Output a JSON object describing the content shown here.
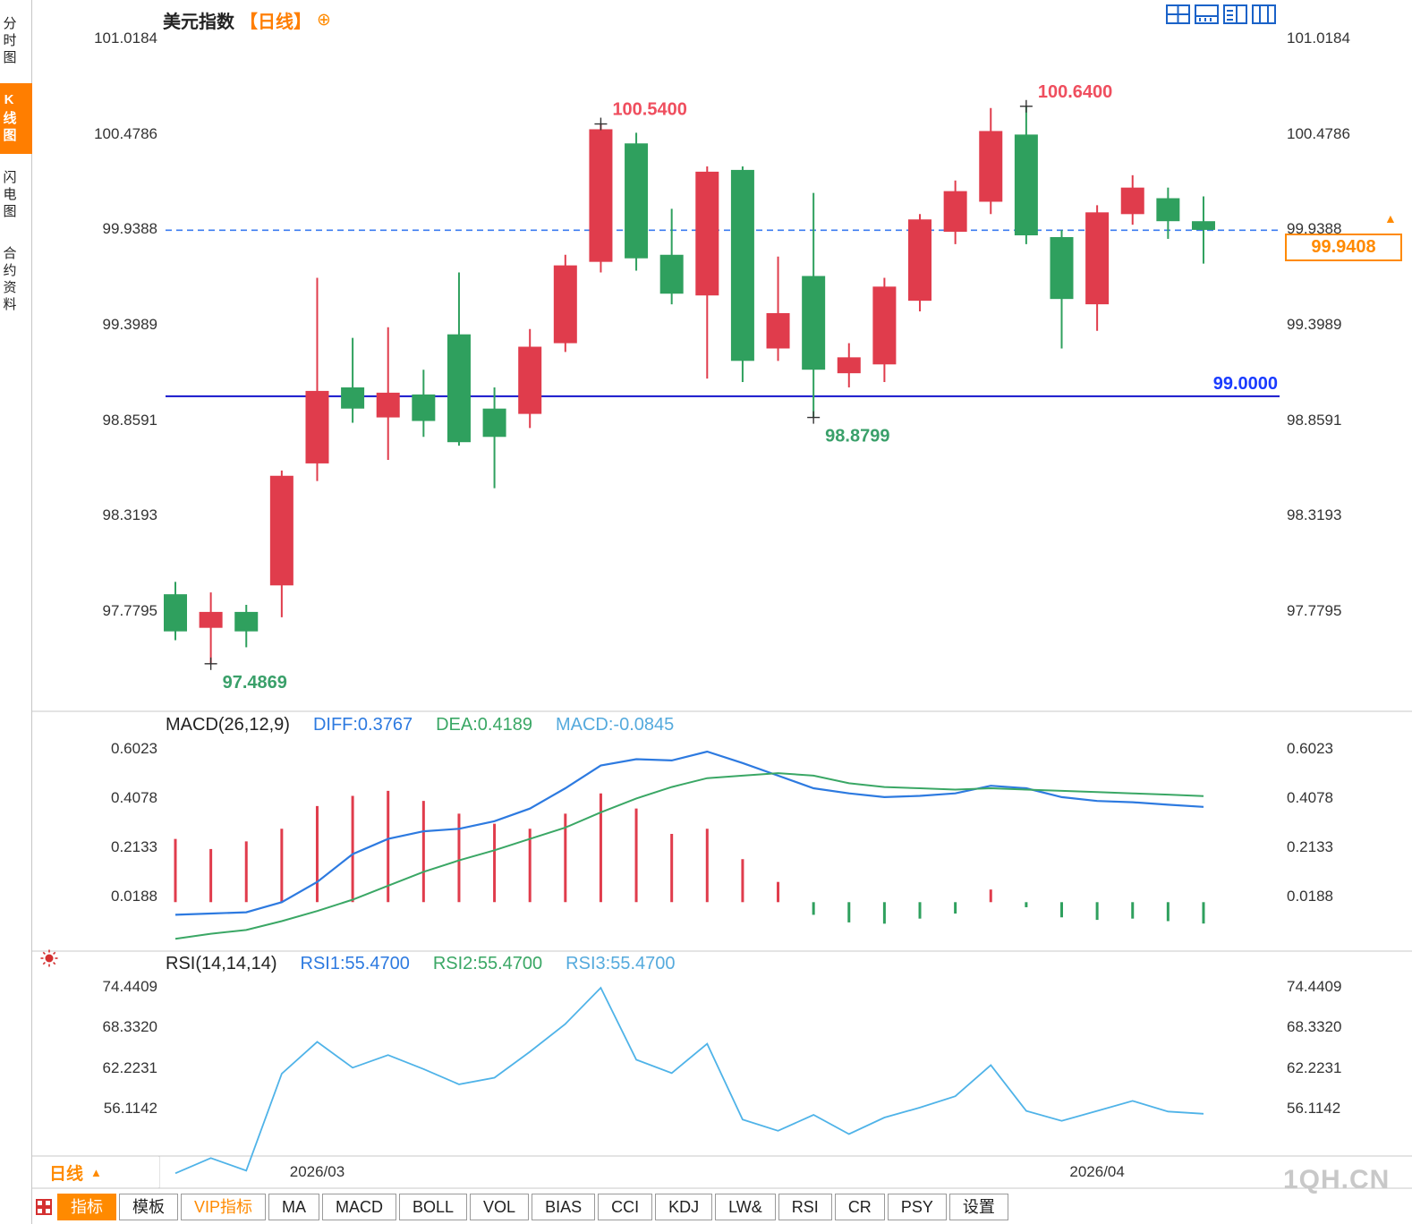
{
  "colors": {
    "up": "#e03c4c",
    "down": "#2fa05e",
    "diff_line": "#2d7ae0",
    "dea_line": "#3aa765",
    "rsi_line": "#4fb3e8",
    "accent_orange": "#ff7e00",
    "solid_line": "#1414cc",
    "solid_label": "#1a3bff",
    "dashed_line": "#3a7bf0",
    "label_high": "#ef4e5e",
    "label_low": "#3aa06a",
    "axis_text": "#333333",
    "watermark": "#c8c8c8",
    "icon_blue": "#1a62c8"
  },
  "sidebar": {
    "items": [
      {
        "label": "分时图",
        "active": false
      },
      {
        "label": "K线图",
        "active": true
      },
      {
        "label": "闪电图",
        "active": false
      },
      {
        "label": "合约资料",
        "active": false
      }
    ]
  },
  "header": {
    "title": "美元指数",
    "period": "【日线】",
    "plus_icon": "⊕"
  },
  "kline": {
    "axis_labels": [
      "101.0184",
      "100.4786",
      "99.9388",
      "99.3989",
      "98.8591",
      "98.3193",
      "97.7795"
    ],
    "axis_values": [
      101.0184,
      100.4786,
      99.9388,
      99.3989,
      98.8591,
      98.3193,
      97.7795
    ],
    "hline_solid": {
      "value": 99.0,
      "label": "99.0000"
    },
    "hline_dashed": {
      "value": 99.9388
    },
    "current_price": "99.9408",
    "price_arrow": "▲",
    "annotations": [
      {
        "text": "100.5400",
        "type": "high",
        "candle": 12
      },
      {
        "text": "100.6400",
        "type": "high",
        "candle": 24
      },
      {
        "text": "98.8799",
        "type": "low",
        "candle": 18
      },
      {
        "text": "97.4869",
        "type": "low",
        "candle": 1
      }
    ]
  },
  "chart_data": [
    {
      "type": "candlestick",
      "title": "美元指数 日线",
      "x_labels": [
        {
          "label": "2026/03",
          "index": 4
        },
        {
          "label": "2026/04",
          "index": 26
        }
      ],
      "ohlc": [
        [
          97.88,
          97.95,
          97.62,
          97.67
        ],
        [
          97.69,
          97.89,
          97.4869,
          97.78
        ],
        [
          97.78,
          97.82,
          97.58,
          97.67
        ],
        [
          97.93,
          98.58,
          97.75,
          98.55
        ],
        [
          98.62,
          99.67,
          98.52,
          99.03
        ],
        [
          99.05,
          99.33,
          98.85,
          98.93
        ],
        [
          98.88,
          99.39,
          98.64,
          99.02
        ],
        [
          99.01,
          99.15,
          98.77,
          98.86
        ],
        [
          99.35,
          99.7,
          98.72,
          98.74
        ],
        [
          98.93,
          99.05,
          98.48,
          98.77
        ],
        [
          98.9,
          99.38,
          98.82,
          99.28
        ],
        [
          99.3,
          99.8,
          99.25,
          99.74
        ],
        [
          99.76,
          100.54,
          99.7,
          100.51
        ],
        [
          100.43,
          100.49,
          99.71,
          99.78
        ],
        [
          99.8,
          100.06,
          99.52,
          99.58
        ],
        [
          99.57,
          100.3,
          99.1,
          100.27
        ],
        [
          100.28,
          100.3,
          99.08,
          99.2
        ],
        [
          99.27,
          99.79,
          99.2,
          99.47
        ],
        [
          99.68,
          100.15,
          98.8799,
          99.15
        ],
        [
          99.13,
          99.3,
          99.05,
          99.22
        ],
        [
          99.18,
          99.67,
          99.08,
          99.62
        ],
        [
          99.54,
          100.03,
          99.48,
          100.0
        ],
        [
          99.93,
          100.22,
          99.86,
          100.16
        ],
        [
          100.1,
          100.63,
          100.03,
          100.5
        ],
        [
          100.48,
          100.64,
          99.86,
          99.91
        ],
        [
          99.9,
          99.94,
          99.27,
          99.55
        ],
        [
          99.52,
          100.08,
          99.37,
          100.04
        ],
        [
          100.03,
          100.25,
          99.97,
          100.18
        ],
        [
          100.12,
          100.18,
          99.89,
          99.99
        ],
        [
          99.99,
          100.13,
          99.75,
          99.9408
        ]
      ]
    },
    {
      "type": "bar",
      "title": "MACD(26,12,9)",
      "legend": {
        "diff": "DIFF:0.3767",
        "dea": "DEA:0.4189",
        "macd": "MACD:-0.0845"
      },
      "axis_labels": [
        "0.6023",
        "0.4078",
        "0.2133",
        "0.0188"
      ],
      "axis_values": [
        0.6023,
        0.4078,
        0.2133,
        0.0188
      ],
      "hist": [
        0.25,
        0.21,
        0.24,
        0.29,
        0.38,
        0.42,
        0.44,
        0.4,
        0.35,
        0.31,
        0.29,
        0.35,
        0.43,
        0.37,
        0.27,
        0.29,
        0.17,
        0.08,
        -0.05,
        -0.08,
        -0.085,
        -0.065,
        -0.045,
        0.05,
        -0.02,
        -0.06,
        -0.07,
        -0.065,
        -0.075,
        -0.0845
      ],
      "diff": [
        -0.05,
        -0.045,
        -0.04,
        0.0,
        0.08,
        0.19,
        0.25,
        0.28,
        0.29,
        0.32,
        0.37,
        0.45,
        0.54,
        0.565,
        0.56,
        0.595,
        0.55,
        0.5,
        0.45,
        0.43,
        0.415,
        0.42,
        0.43,
        0.46,
        0.45,
        0.415,
        0.4,
        0.395,
        0.385,
        0.3767
      ],
      "dea": [
        -0.145,
        -0.125,
        -0.11,
        -0.075,
        -0.035,
        0.01,
        0.065,
        0.12,
        0.165,
        0.205,
        0.25,
        0.295,
        0.355,
        0.41,
        0.455,
        0.49,
        0.5,
        0.51,
        0.5,
        0.47,
        0.455,
        0.45,
        0.445,
        0.45,
        0.445,
        0.44,
        0.435,
        0.43,
        0.425,
        0.4189
      ]
    },
    {
      "type": "line",
      "title": "RSI(14,14,14)",
      "legend": {
        "rsi1": "RSI1:55.4700",
        "rsi2": "RSI2:55.4700",
        "rsi3": "RSI3:55.4700"
      },
      "axis_labels": [
        "74.4409",
        "68.3320",
        "62.2231",
        "56.1142"
      ],
      "axis_values": [
        74.4409,
        68.332,
        62.2231,
        56.1142
      ],
      "rsi": [
        46.5,
        48.8,
        46.9,
        61.5,
        66.3,
        62.4,
        64.3,
        62.2,
        59.9,
        60.9,
        64.8,
        69.0,
        74.44,
        63.6,
        61.6,
        66.0,
        54.6,
        52.9,
        55.3,
        52.4,
        54.9,
        56.4,
        58.1,
        62.8,
        55.9,
        54.4,
        55.9,
        57.4,
        55.8,
        55.47
      ]
    }
  ],
  "bottom": {
    "period": "日线",
    "arrow": "▲"
  },
  "footer_tabs": [
    {
      "label": "指标",
      "key": "indicators",
      "style": "active"
    },
    {
      "label": "模板",
      "key": "templates"
    },
    {
      "label": "VIP指标",
      "key": "vip",
      "style": "vip"
    },
    {
      "label": "MA",
      "key": "ma"
    },
    {
      "label": "MACD",
      "key": "macd"
    },
    {
      "label": "BOLL",
      "key": "boll"
    },
    {
      "label": "VOL",
      "key": "vol"
    },
    {
      "label": "BIAS",
      "key": "bias"
    },
    {
      "label": "CCI",
      "key": "cci"
    },
    {
      "label": "KDJ",
      "key": "kdj"
    },
    {
      "label": "LW&",
      "key": "lwr"
    },
    {
      "label": "RSI",
      "key": "rsi"
    },
    {
      "label": "CR",
      "key": "cr"
    },
    {
      "label": "PSY",
      "key": "psy"
    },
    {
      "label": "设置",
      "key": "settings"
    }
  ],
  "watermark": "1QH.CN"
}
